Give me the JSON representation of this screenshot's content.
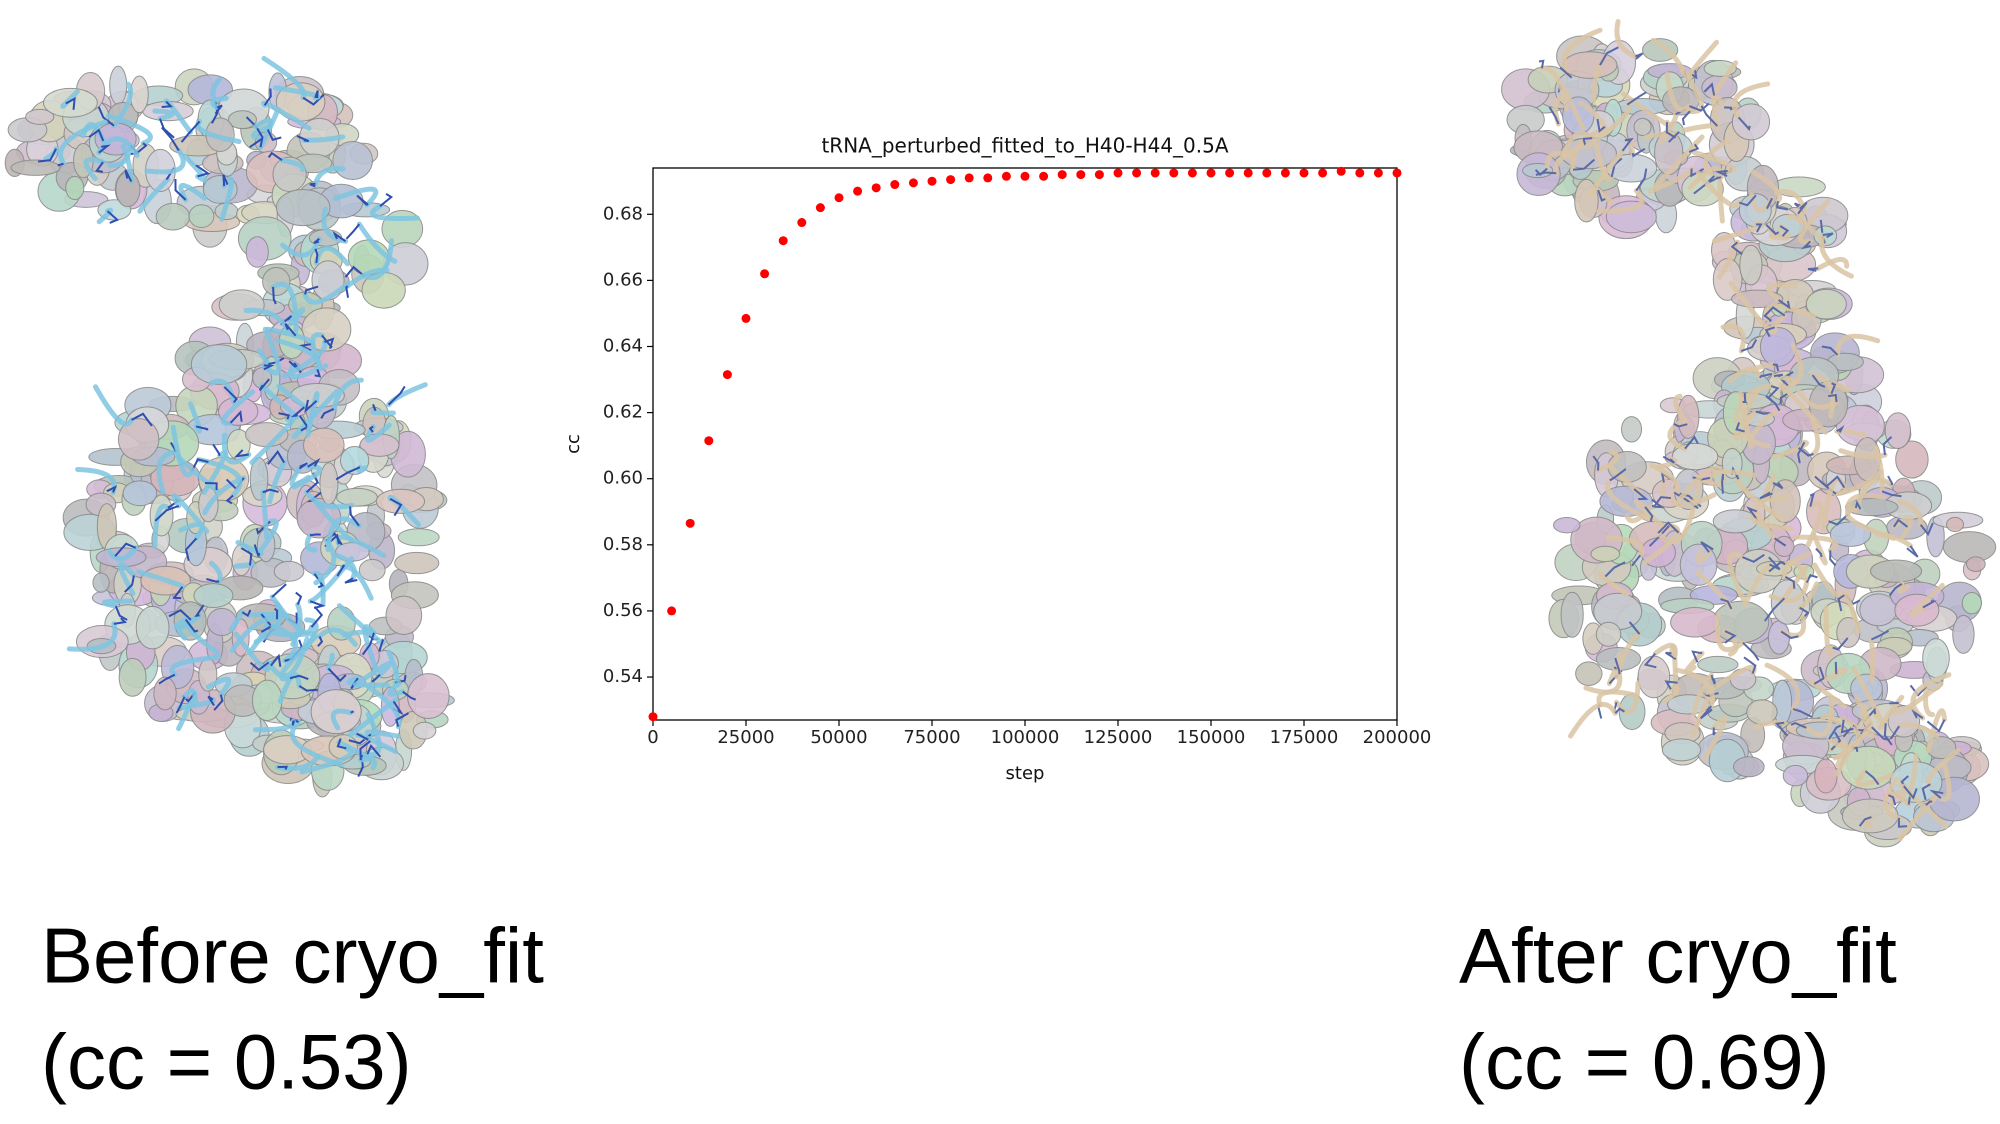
{
  "chart_data": {
    "type": "scatter",
    "title": "tRNA_perturbed_fitted_to_H40-H44_0.5A",
    "x_label": "step",
    "y_label": "cc",
    "x": [
      0,
      5000,
      10000,
      15000,
      20000,
      25000,
      30000,
      35000,
      40000,
      45000,
      50000,
      55000,
      60000,
      65000,
      70000,
      75000,
      80000,
      85000,
      90000,
      95000,
      100000,
      105000,
      110000,
      115000,
      120000,
      125000,
      130000,
      135000,
      140000,
      145000,
      150000,
      155000,
      160000,
      165000,
      170000,
      175000,
      180000,
      185000,
      190000,
      195000,
      200000
    ],
    "values": [
      0.528,
      0.56,
      0.5865,
      0.6115,
      0.6315,
      0.6485,
      0.662,
      0.672,
      0.6775,
      0.682,
      0.685,
      0.687,
      0.688,
      0.689,
      0.6895,
      0.69,
      0.6905,
      0.691,
      0.691,
      0.6915,
      0.6915,
      0.6915,
      0.692,
      0.692,
      0.692,
      0.6925,
      0.6925,
      0.6925,
      0.6925,
      0.6925,
      0.6925,
      0.6925,
      0.6925,
      0.6925,
      0.6925,
      0.6925,
      0.6925,
      0.693,
      0.6925,
      0.6925,
      0.6925
    ],
    "color": "#ff0000",
    "xlim": [
      0,
      200000
    ],
    "xticks": [
      0,
      25000,
      50000,
      75000,
      100000,
      125000,
      150000,
      175000,
      200000
    ],
    "ylim": [
      0.527,
      0.694
    ],
    "yticks": [
      0.54,
      0.56,
      0.58,
      {
        "value": 0.6,
        "label": "0.60"
      },
      0.62,
      0.64,
      0.66,
      0.68
    ],
    "grid": false
  },
  "captions": {
    "before": {
      "label": "Before cryo_fit",
      "cc": "(cc = 0.53)"
    },
    "after": {
      "label": "After cryo_fit",
      "cc": "(cc = 0.69)"
    }
  }
}
